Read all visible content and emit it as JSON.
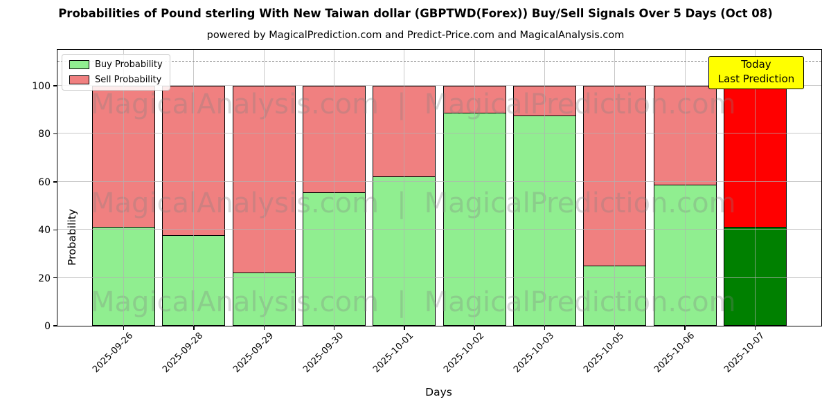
{
  "chart_data": {
    "type": "bar",
    "stacked": true,
    "title": "Probabilities of Pound sterling With New Taiwan dollar (GBPTWD(Forex)) Buy/Sell Signals Over 5 Days (Oct 08)",
    "subtitle": "powered by MagicalPrediction.com and Predict-Price.com and MagicalAnalysis.com",
    "xlabel": "Days",
    "ylabel": "Probability",
    "categories": [
      "2025-09-26",
      "2025-09-28",
      "2025-09-29",
      "2025-09-30",
      "2025-10-01",
      "2025-10-02",
      "2025-10-03",
      "2025-10-05",
      "2025-10-06",
      "2025-10-07"
    ],
    "series": [
      {
        "name": "Buy Probability",
        "color": "#90ee90",
        "values": [
          41.5,
          38,
          22.5,
          56,
          62.5,
          89,
          88,
          25.5,
          59,
          41.5
        ]
      },
      {
        "name": "Sell Probability",
        "color": "#f08080",
        "values": [
          58.5,
          62,
          77.5,
          44,
          37.5,
          11,
          12,
          74.5,
          41,
          58.5
        ]
      }
    ],
    "highlight_last_bar": {
      "index": 9,
      "buy_color": "#008000",
      "sell_color": "#ff0000",
      "box_bg": "#ffff00",
      "label_lines": [
        "Today",
        "Last Prediction"
      ]
    },
    "ylim": [
      0,
      115
    ],
    "yticks": [
      0,
      20,
      40,
      60,
      80,
      100
    ],
    "dashed_guide_y": 110,
    "grid": true,
    "legend_position": "upper-left"
  },
  "watermark": {
    "left": "MagicalAnalysis.com",
    "separator": "|",
    "right": "MagicalPrediction.com"
  }
}
